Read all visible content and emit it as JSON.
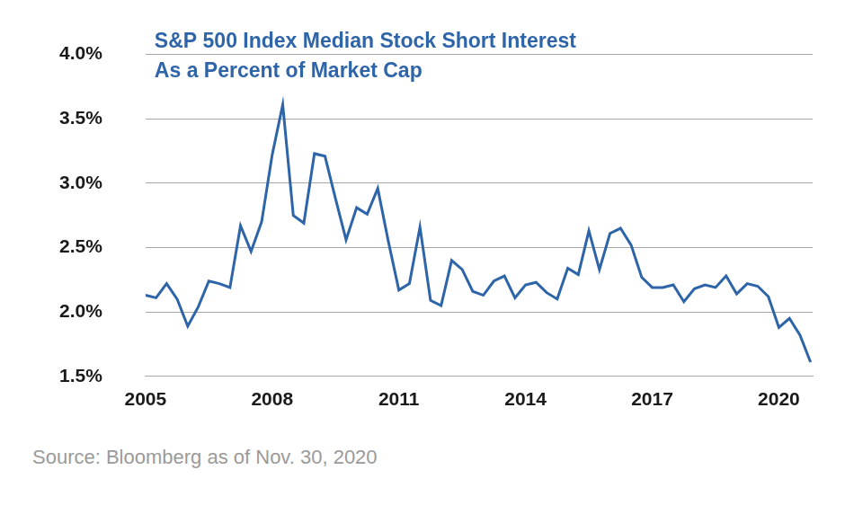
{
  "chart_data": {
    "type": "line",
    "title": [
      "S&P 500 Index Median Stock Short Interest",
      "As a Percent of Market Cap"
    ],
    "source": "Source: Bloomberg as of Nov. 30, 2020",
    "x": [
      2005.0,
      2005.25,
      2005.5,
      2005.75,
      2006.0,
      2006.25,
      2006.5,
      2006.75,
      2007.0,
      2007.25,
      2007.5,
      2007.75,
      2008.0,
      2008.25,
      2008.5,
      2008.75,
      2009.0,
      2009.25,
      2009.5,
      2009.75,
      2010.0,
      2010.25,
      2010.5,
      2010.75,
      2011.0,
      2011.25,
      2011.5,
      2011.75,
      2012.0,
      2012.25,
      2012.5,
      2012.75,
      2013.0,
      2013.25,
      2013.5,
      2013.75,
      2014.0,
      2014.25,
      2014.5,
      2014.75,
      2015.0,
      2015.25,
      2015.5,
      2015.75,
      2016.0,
      2016.25,
      2016.5,
      2016.75,
      2017.0,
      2017.25,
      2017.5,
      2017.75,
      2018.0,
      2018.25,
      2018.5,
      2018.75,
      2019.0,
      2019.25,
      2019.5,
      2019.75,
      2020.0,
      2020.25,
      2020.5,
      2020.75
    ],
    "values": [
      2.13,
      2.11,
      2.22,
      2.1,
      1.89,
      2.04,
      2.24,
      2.22,
      2.19,
      2.67,
      2.47,
      2.7,
      3.22,
      3.61,
      2.75,
      2.69,
      3.23,
      3.21,
      2.88,
      2.56,
      2.81,
      2.76,
      2.96,
      2.55,
      2.17,
      2.22,
      2.66,
      2.09,
      2.05,
      2.4,
      2.33,
      2.16,
      2.13,
      2.24,
      2.28,
      2.11,
      2.21,
      2.23,
      2.15,
      2.1,
      2.34,
      2.29,
      2.63,
      2.33,
      2.61,
      2.65,
      2.52,
      2.27,
      2.19,
      2.19,
      2.21,
      2.08,
      2.18,
      2.21,
      2.19,
      2.28,
      2.14,
      2.22,
      2.2,
      2.12,
      1.88,
      1.95,
      1.82,
      1.61
    ],
    "color": "#2e64a8",
    "xlim": [
      2005,
      2020.8
    ],
    "xticks": [
      2005,
      2008,
      2011,
      2014,
      2017,
      2020
    ],
    "ylim": [
      1.5,
      4.0
    ],
    "yticks": [
      {
        "value": 1.5,
        "label": "1.5%"
      },
      {
        "value": 2.0,
        "label": "2.0%"
      },
      {
        "value": 2.5,
        "label": "2.5%"
      },
      {
        "value": 3.0,
        "label": "3.0%"
      },
      {
        "value": 3.5,
        "label": "3.5%"
      },
      {
        "value": 4.0,
        "label": "4.0%"
      }
    ],
    "grid": true
  }
}
